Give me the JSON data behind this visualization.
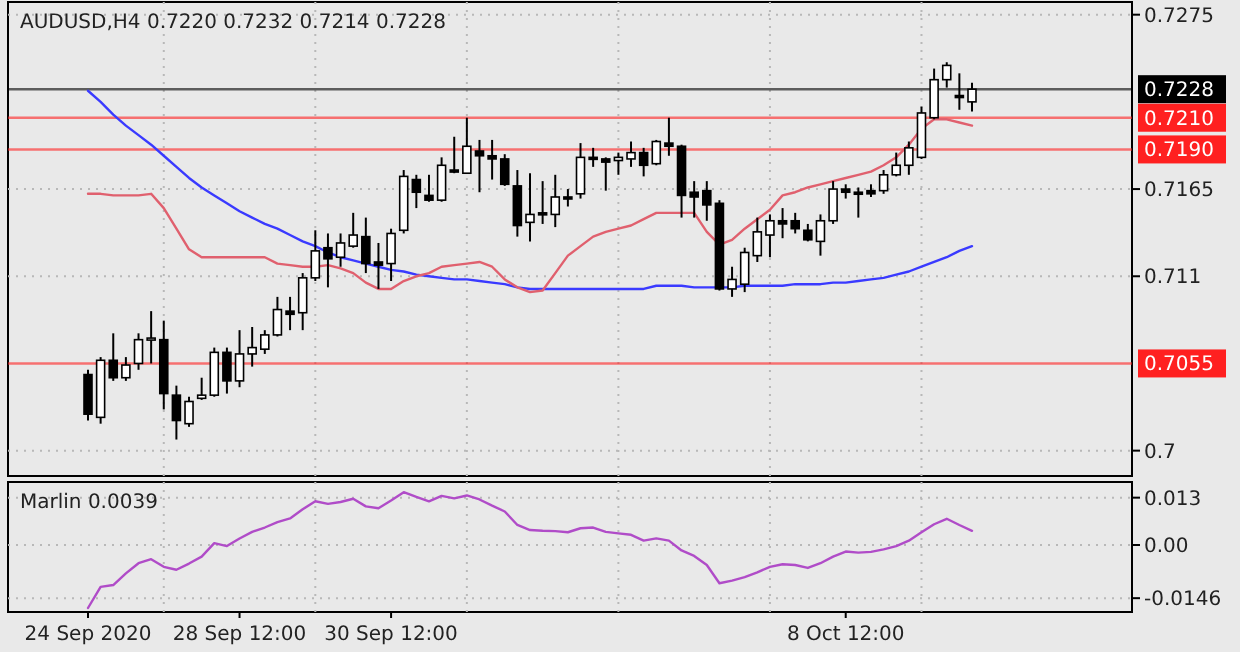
{
  "chart_data": [
    {
      "type": "candlestick",
      "title": "AUDUSD,H4 0.7220 0.7232 0.7214 0.7228",
      "categories": [
        null,
        null,
        null,
        null,
        null,
        null,
        null,
        null,
        null,
        null,
        null,
        null,
        null,
        null,
        null,
        null,
        null,
        null,
        null,
        null,
        null,
        null,
        null,
        null,
        null,
        null,
        null,
        null,
        null,
        null,
        null,
        null,
        null,
        null,
        null,
        null,
        null,
        null,
        null,
        null,
        null,
        null,
        null,
        null,
        null,
        null,
        null,
        null,
        null,
        null,
        null,
        null,
        null,
        null,
        null,
        null,
        null,
        null,
        null,
        null,
        null,
        null,
        null,
        null,
        null,
        null,
        null,
        null,
        null,
        null,
        null
      ],
      "ohlc": [
        [
          0.7048,
          0.7051,
          0.7019,
          0.7023
        ],
        [
          0.7021,
          0.7059,
          0.7017,
          0.7057
        ],
        [
          0.7057,
          0.7074,
          0.7044,
          0.7046
        ],
        [
          0.7046,
          0.7059,
          0.7044,
          0.7054
        ],
        [
          0.7055,
          0.7074,
          0.7051,
          0.707
        ],
        [
          0.707,
          0.7088,
          0.7055,
          0.7071
        ],
        [
          0.707,
          0.7082,
          0.7026,
          0.7036
        ],
        [
          0.7035,
          0.7041,
          0.7007,
          0.7019
        ],
        [
          0.7017,
          0.7034,
          0.7015,
          0.7031
        ],
        [
          0.7033,
          0.7046,
          0.7032,
          0.7035
        ],
        [
          0.7035,
          0.7065,
          0.7034,
          0.7062
        ],
        [
          0.7062,
          0.7065,
          0.7036,
          0.7044
        ],
        [
          0.7044,
          0.7076,
          0.704,
          0.7061
        ],
        [
          0.7061,
          0.7078,
          0.7053,
          0.7065
        ],
        [
          0.7064,
          0.7076,
          0.7061,
          0.7073
        ],
        [
          0.7073,
          0.7097,
          0.7072,
          0.7089
        ],
        [
          0.7088,
          0.7097,
          0.7076,
          0.7086
        ],
        [
          0.7087,
          0.7112,
          0.7076,
          0.7109
        ],
        [
          0.7109,
          0.7139,
          0.7107,
          0.7126
        ],
        [
          0.7128,
          0.7137,
          0.7103,
          0.7121
        ],
        [
          0.7122,
          0.7137,
          0.7116,
          0.7131
        ],
        [
          0.7129,
          0.715,
          0.7128,
          0.7136
        ],
        [
          0.7135,
          0.7147,
          0.7112,
          0.7118
        ],
        [
          0.7119,
          0.7131,
          0.7102,
          0.7117
        ],
        [
          0.7118,
          0.714,
          0.7107,
          0.7137
        ],
        [
          0.7139,
          0.7177,
          0.7137,
          0.7173
        ],
        [
          0.7171,
          0.7174,
          0.7153,
          0.7163
        ],
        [
          0.7161,
          0.7174,
          0.7157,
          0.7158
        ],
        [
          0.7158,
          0.7185,
          0.7157,
          0.718
        ],
        [
          0.7177,
          0.7198,
          0.7175,
          0.7176
        ],
        [
          0.7175,
          0.721,
          0.7175,
          0.7192
        ],
        [
          0.7189,
          0.7196,
          0.7163,
          0.7186
        ],
        [
          0.7186,
          0.7196,
          0.7171,
          0.7184
        ],
        [
          0.7184,
          0.7187,
          0.7167,
          0.7168
        ],
        [
          0.7167,
          0.7177,
          0.7135,
          0.7142
        ],
        [
          0.7144,
          0.7175,
          0.7132,
          0.7149
        ],
        [
          0.715,
          0.717,
          0.7143,
          0.7149
        ],
        [
          0.7149,
          0.7174,
          0.7141,
          0.716
        ],
        [
          0.716,
          0.7165,
          0.7154,
          0.7159
        ],
        [
          0.7162,
          0.7194,
          0.7159,
          0.7185
        ],
        [
          0.7185,
          0.7191,
          0.7179,
          0.7184
        ],
        [
          0.7184,
          0.7185,
          0.7164,
          0.7182
        ],
        [
          0.7183,
          0.7188,
          0.7174,
          0.7185
        ],
        [
          0.7184,
          0.7195,
          0.7179,
          0.7188
        ],
        [
          0.7188,
          0.7191,
          0.7173,
          0.718
        ],
        [
          0.7181,
          0.7196,
          0.718,
          0.7195
        ],
        [
          0.7194,
          0.721,
          0.7186,
          0.7192
        ],
        [
          0.7192,
          0.7193,
          0.7147,
          0.7161
        ],
        [
          0.7163,
          0.717,
          0.7147,
          0.716
        ],
        [
          0.7164,
          0.717,
          0.7145,
          0.7155
        ],
        [
          0.7156,
          0.7158,
          0.7101,
          0.7102
        ],
        [
          0.7102,
          0.7116,
          0.7097,
          0.7108
        ],
        [
          0.7105,
          0.7128,
          0.71,
          0.7125
        ],
        [
          0.7123,
          0.7147,
          0.7119,
          0.7138
        ],
        [
          0.7136,
          0.7149,
          0.7122,
          0.7145
        ],
        [
          0.7145,
          0.7153,
          0.7134,
          0.7143
        ],
        [
          0.7145,
          0.715,
          0.7137,
          0.714
        ],
        [
          0.7139,
          0.7143,
          0.7132,
          0.7133
        ],
        [
          0.7132,
          0.7149,
          0.7123,
          0.7145
        ],
        [
          0.7145,
          0.717,
          0.7143,
          0.7165
        ],
        [
          0.7165,
          0.7168,
          0.7159,
          0.7163
        ],
        [
          0.7163,
          0.7166,
          0.7147,
          0.7162
        ],
        [
          0.7164,
          0.7168,
          0.716,
          0.7162
        ],
        [
          0.7164,
          0.7177,
          0.7162,
          0.7174
        ],
        [
          0.7174,
          0.7188,
          0.7173,
          0.718
        ],
        [
          0.718,
          0.7195,
          0.7174,
          0.7191
        ],
        [
          0.7185,
          0.7217,
          0.7184,
          0.7213
        ],
        [
          0.721,
          0.7241,
          0.7209,
          0.7234
        ],
        [
          0.7234,
          0.7245,
          0.7229,
          0.7243
        ],
        [
          0.7224,
          0.7238,
          0.7215,
          0.7223
        ],
        [
          0.722,
          0.7232,
          0.7214,
          0.7228
        ]
      ],
      "series": [
        {
          "type": "line",
          "color": "#3a3aff",
          "values": [
            0.7227,
            0.722,
            0.7212,
            0.7205,
            0.7199,
            0.7193,
            0.7186,
            0.7179,
            0.7172,
            0.7166,
            0.7161,
            0.7156,
            0.7151,
            0.7147,
            0.7143,
            0.714,
            0.7136,
            0.7132,
            0.7129,
            0.7125,
            0.7122,
            0.712,
            0.7118,
            0.7116,
            0.7114,
            0.7113,
            0.7111,
            0.711,
            0.7109,
            0.7108,
            0.7108,
            0.7107,
            0.7106,
            0.7105,
            0.7103,
            0.7102,
            0.7102,
            0.7102,
            0.7102,
            0.7102,
            0.7102,
            0.7102,
            0.7102,
            0.7102,
            0.7102,
            0.7104,
            0.7104,
            0.7104,
            0.7103,
            0.7103,
            0.7103,
            0.7103,
            0.7104,
            0.7104,
            0.7104,
            0.7104,
            0.7105,
            0.7105,
            0.7105,
            0.7106,
            0.7106,
            0.7107,
            0.7108,
            0.7109,
            0.7111,
            0.7113,
            0.7116,
            0.7119,
            0.7122,
            0.7126,
            0.7129
          ]
        },
        {
          "type": "line",
          "color": "#e0606e",
          "values": [
            0.7162,
            0.7162,
            0.7161,
            0.7161,
            0.7161,
            0.7162,
            0.7153,
            0.714,
            0.7127,
            0.7122,
            0.7122,
            0.7122,
            0.7122,
            0.7122,
            0.7122,
            0.7118,
            0.7117,
            0.7116,
            0.7116,
            0.7117,
            0.7115,
            0.7112,
            0.7106,
            0.7102,
            0.7102,
            0.7107,
            0.711,
            0.7112,
            0.7116,
            0.7117,
            0.7118,
            0.7119,
            0.7116,
            0.7108,
            0.7103,
            0.71,
            0.7101,
            0.7112,
            0.7123,
            0.7129,
            0.7135,
            0.7138,
            0.714,
            0.7142,
            0.7146,
            0.715,
            0.715,
            0.715,
            0.715,
            0.7138,
            0.713,
            0.7133,
            0.714,
            0.7146,
            0.7152,
            0.7161,
            0.7163,
            0.7166,
            0.7168,
            0.717,
            0.7172,
            0.7174,
            0.7176,
            0.718,
            0.7185,
            0.7193,
            0.7203,
            0.7209,
            0.7209,
            0.7207,
            0.7205
          ]
        }
      ],
      "ylim": [
        0.6984,
        0.7283
      ],
      "yticks": [
        0.7275,
        0.7165,
        0.711,
        0.7
      ],
      "ref_lines": [
        {
          "axis": "y",
          "value": 0.7228,
          "label": "0.7228",
          "color": "#000000"
        },
        {
          "axis": "y",
          "value": 0.721,
          "label": "0.7210",
          "color": "#ff2020"
        },
        {
          "axis": "y",
          "value": 0.719,
          "label": "0.7190",
          "color": "#ff2020"
        },
        {
          "axis": "y",
          "value": 0.7055,
          "label": "0.7055",
          "color": "#ff2020"
        }
      ],
      "grid": true,
      "tick_labels": "y"
    },
    {
      "type": "line",
      "title": "Marlin 0.0039",
      "categories": [
        "24 Sep 2020",
        null,
        null,
        null,
        null,
        null,
        null,
        null,
        null,
        null,
        null,
        null,
        "28 Sep 12:00",
        null,
        null,
        null,
        null,
        null,
        null,
        null,
        null,
        null,
        null,
        null,
        "30 Sep 12:00",
        null,
        null,
        null,
        null,
        null,
        null,
        null,
        null,
        null,
        null,
        null,
        null,
        null,
        null,
        null,
        null,
        null,
        null,
        null,
        null,
        null,
        null,
        null,
        null,
        null,
        null,
        null,
        null,
        null,
        null,
        null,
        null,
        null,
        null,
        null,
        "8 Oct 12:00",
        null,
        null,
        null,
        null,
        null,
        null,
        null,
        null,
        null,
        null
      ],
      "series": [
        {
          "color": "#b04cc8",
          "values": [
            -0.0173,
            -0.0115,
            -0.011,
            -0.0078,
            -0.005,
            -0.0039,
            -0.006,
            -0.0068,
            -0.0051,
            -0.0032,
            0.0005,
            -0.0003,
            0.0018,
            0.0036,
            0.0048,
            0.0063,
            0.0073,
            0.0098,
            0.012,
            0.0113,
            0.0118,
            0.0127,
            0.0106,
            0.0101,
            0.0122,
            0.0145,
            0.0132,
            0.012,
            0.0135,
            0.0128,
            0.0136,
            0.0125,
            0.0108,
            0.0092,
            0.0055,
            0.0041,
            0.0039,
            0.0038,
            0.0035,
            0.0046,
            0.0048,
            0.0036,
            0.0032,
            0.0028,
            0.0012,
            0.0018,
            0.0012,
            -0.0015,
            -0.003,
            -0.0055,
            -0.0105,
            -0.0098,
            -0.0088,
            -0.0075,
            -0.006,
            -0.0053,
            -0.0055,
            -0.0063,
            -0.005,
            -0.0032,
            -0.0018,
            -0.0021,
            -0.0019,
            -0.0012,
            -0.0003,
            0.0012,
            0.0035,
            0.0057,
            0.0072,
            0.0055,
            0.0039
          ]
        }
      ],
      "ylim": [
        -0.0184,
        0.0173
      ],
      "yticks": [
        0.013,
        {
          "value": 0,
          "label": "0.00"
        },
        -0.0146
      ],
      "grid": true
    }
  ]
}
